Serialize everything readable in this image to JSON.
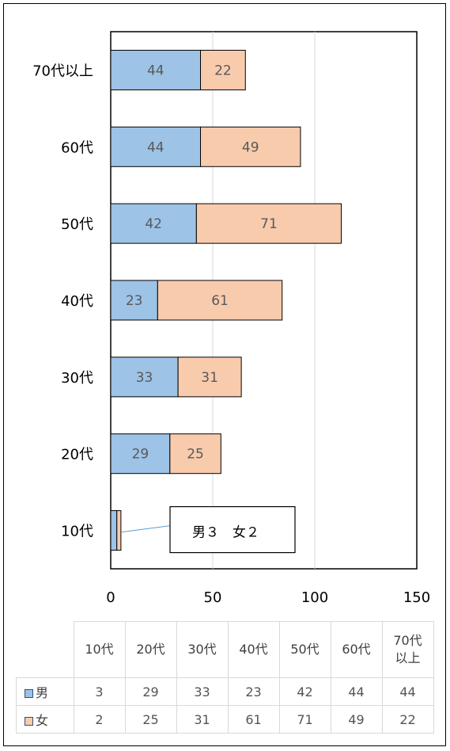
{
  "chart_data": {
    "type": "bar",
    "orientation": "horizontal",
    "stacked": true,
    "categories": [
      "10代",
      "20代",
      "30代",
      "40代",
      "50代",
      "60代",
      "70代以上"
    ],
    "series": [
      {
        "name": "男",
        "values": [
          3,
          29,
          33,
          23,
          42,
          44,
          44
        ],
        "color": "#9dc3e6"
      },
      {
        "name": "女",
        "values": [
          2,
          25,
          31,
          61,
          71,
          49,
          22
        ],
        "color": "#f8cbad"
      }
    ],
    "xlim": [
      0,
      150
    ],
    "xticks": [
      "0",
      "50",
      "100",
      "150"
    ],
    "grid": true,
    "legend": "table-below",
    "annotation": "男３　女２"
  },
  "table": {
    "columns": [
      "10代",
      "20代",
      "30代",
      "40代",
      "50代",
      "60代",
      "70代以上"
    ],
    "rows": [
      {
        "label": "男",
        "values": [
          "3",
          "29",
          "33",
          "23",
          "42",
          "44",
          "44"
        ]
      },
      {
        "label": "女",
        "values": [
          "2",
          "25",
          "31",
          "61",
          "71",
          "49",
          "22"
        ]
      }
    ]
  },
  "colors": {
    "male": "#9dc3e6",
    "female": "#f8cbad",
    "edge": "#000000",
    "grid": "#d9d9d9",
    "label": "#595959"
  }
}
